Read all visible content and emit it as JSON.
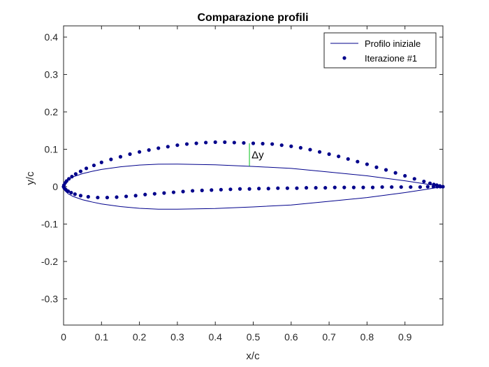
{
  "chart_data": {
    "type": "line",
    "title": "Comparazione profili",
    "xlabel": "x/c",
    "ylabel": "y/c",
    "xlim": [
      0,
      1
    ],
    "ylim": [
      -0.37,
      0.43
    ],
    "xticks": [
      0,
      0.1,
      0.2,
      0.3,
      0.4,
      0.5,
      0.6,
      0.7,
      0.8,
      0.9
    ],
    "xtick_labels": [
      "0",
      "0.1",
      "0.2",
      "0.3",
      "0.4",
      "0.5",
      "0.6",
      "0.7",
      "0.8",
      "0.9"
    ],
    "yticks": [
      -0.3,
      -0.2,
      -0.1,
      0,
      0.1,
      0.2,
      0.3,
      0.4
    ],
    "ytick_labels": [
      "-0.3",
      "-0.2",
      "-0.1",
      "0",
      "0.1",
      "0.2",
      "0.3",
      "0.4"
    ],
    "grid": false,
    "legend_position": "top-right",
    "colors": {
      "profile": "#00008b",
      "annotation": "#2ecc40",
      "axes": "#262626"
    },
    "series": [
      {
        "name": "Profilo iniziale",
        "style": "line",
        "x": [
          1.0,
          0.95,
          0.9,
          0.8,
          0.7,
          0.6,
          0.5,
          0.4,
          0.3,
          0.25,
          0.2,
          0.15,
          0.1,
          0.075,
          0.05,
          0.025,
          0.0125,
          0.005,
          0.0,
          0.005,
          0.0125,
          0.025,
          0.05,
          0.075,
          0.1,
          0.15,
          0.2,
          0.25,
          0.3,
          0.4,
          0.5,
          0.6,
          0.7,
          0.8,
          0.9,
          0.95,
          1.0
        ],
        "y": [
          0.0,
          0.008,
          0.0158,
          0.029,
          0.0392,
          0.0489,
          0.0541,
          0.0584,
          0.0603,
          0.0601,
          0.0578,
          0.0532,
          0.0461,
          0.0409,
          0.0349,
          0.0261,
          0.0192,
          0.0124,
          0.0,
          -0.0124,
          -0.0192,
          -0.0261,
          -0.0349,
          -0.0409,
          -0.0461,
          -0.0532,
          -0.0578,
          -0.0601,
          -0.0603,
          -0.0584,
          -0.0541,
          -0.0489,
          -0.0392,
          -0.029,
          -0.0158,
          -0.008,
          0.0
        ]
      },
      {
        "name": "Iterazione #1",
        "style": "markers",
        "x": [
          1.0,
          0.992,
          0.984,
          0.976,
          0.966,
          0.95,
          0.925,
          0.9,
          0.875,
          0.85,
          0.825,
          0.8,
          0.775,
          0.75,
          0.725,
          0.7,
          0.675,
          0.65,
          0.625,
          0.6,
          0.575,
          0.55,
          0.525,
          0.5,
          0.475,
          0.45,
          0.425,
          0.4,
          0.375,
          0.35,
          0.325,
          0.3,
          0.275,
          0.25,
          0.225,
          0.2,
          0.175,
          0.15,
          0.125,
          0.1,
          0.08,
          0.06,
          0.045,
          0.032,
          0.022,
          0.014,
          0.008,
          0.004,
          0.001,
          0.0,
          0.002,
          0.006,
          0.012,
          0.02,
          0.03,
          0.045,
          0.065,
          0.09,
          0.115,
          0.14,
          0.165,
          0.19,
          0.215,
          0.24,
          0.265,
          0.29,
          0.315,
          0.34,
          0.365,
          0.39,
          0.415,
          0.44,
          0.465,
          0.49,
          0.515,
          0.54,
          0.565,
          0.59,
          0.615,
          0.64,
          0.665,
          0.69,
          0.715,
          0.74,
          0.765,
          0.79,
          0.815,
          0.84,
          0.865,
          0.89,
          0.915,
          0.94,
          0.96,
          0.975,
          0.985,
          0.993,
          1.0
        ],
        "y": [
          0.0,
          0.002,
          0.004,
          0.006,
          0.009,
          0.014,
          0.021,
          0.029,
          0.037,
          0.045,
          0.052,
          0.06,
          0.067,
          0.074,
          0.081,
          0.087,
          0.093,
          0.099,
          0.104,
          0.108,
          0.111,
          0.114,
          0.115,
          0.116,
          0.117,
          0.118,
          0.119,
          0.119,
          0.118,
          0.116,
          0.114,
          0.111,
          0.107,
          0.103,
          0.098,
          0.093,
          0.087,
          0.08,
          0.073,
          0.065,
          0.057,
          0.049,
          0.041,
          0.034,
          0.027,
          0.021,
          0.015,
          0.01,
          0.004,
          0.0,
          -0.004,
          -0.008,
          -0.012,
          -0.016,
          -0.02,
          -0.024,
          -0.027,
          -0.029,
          -0.029,
          -0.028,
          -0.026,
          -0.024,
          -0.021,
          -0.019,
          -0.017,
          -0.015,
          -0.013,
          -0.011,
          -0.01,
          -0.009,
          -0.008,
          -0.007,
          -0.006,
          -0.006,
          -0.005,
          -0.005,
          -0.004,
          -0.004,
          -0.004,
          -0.003,
          -0.003,
          -0.003,
          -0.002,
          -0.002,
          -0.002,
          -0.002,
          -0.002,
          -0.001,
          -0.001,
          -0.001,
          -0.001,
          -0.001,
          0.0,
          0.0,
          0.0,
          0.0,
          0.0
        ]
      }
    ],
    "annotation": {
      "text": "Δy",
      "x": 0.49,
      "y_top": 0.116,
      "y_bottom": 0.055
    }
  }
}
